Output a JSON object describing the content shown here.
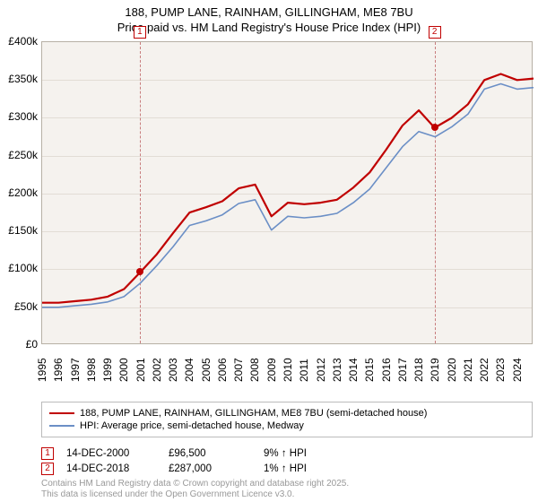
{
  "title": {
    "line1": "188, PUMP LANE, RAINHAM, GILLINGHAM, ME8 7BU",
    "line2": "Price paid vs. HM Land Registry's House Price Index (HPI)"
  },
  "chart": {
    "type": "line",
    "background_color": "#f5f2ee",
    "border_color": "#b7b0a5",
    "grid_color": "#e2ddd5",
    "text_color": "#000000",
    "tick_fontsize": 12,
    "y": {
      "min": 0,
      "max": 400000,
      "step": 50000,
      "labels": [
        "£0",
        "£50k",
        "£100k",
        "£150k",
        "£200k",
        "£250k",
        "£300k",
        "£350k",
        "£400k"
      ]
    },
    "x": {
      "min": 1995,
      "max": 2025,
      "labels": [
        "1995",
        "1996",
        "1997",
        "1998",
        "1999",
        "2000",
        "2001",
        "2002",
        "2003",
        "2004",
        "2005",
        "2006",
        "2007",
        "2008",
        "2009",
        "2010",
        "2011",
        "2012",
        "2013",
        "2014",
        "2015",
        "2016",
        "2017",
        "2018",
        "2019",
        "2020",
        "2021",
        "2022",
        "2023",
        "2024"
      ]
    },
    "series": [
      {
        "name": "188, PUMP LANE, RAINHAM, GILLINGHAM, ME8 7BU (semi-detached house)",
        "color": "#c00000",
        "line_width": 2.2,
        "values": [
          [
            1995,
            56000
          ],
          [
            1996,
            56000
          ],
          [
            1997,
            58000
          ],
          [
            1998,
            60000
          ],
          [
            1999,
            64000
          ],
          [
            2000,
            74000
          ],
          [
            2001,
            96500
          ],
          [
            2002,
            120000
          ],
          [
            2003,
            148000
          ],
          [
            2004,
            175000
          ],
          [
            2005,
            182000
          ],
          [
            2006,
            190000
          ],
          [
            2007,
            207000
          ],
          [
            2008,
            212000
          ],
          [
            2009,
            170000
          ],
          [
            2010,
            188000
          ],
          [
            2011,
            186000
          ],
          [
            2012,
            188000
          ],
          [
            2013,
            192000
          ],
          [
            2014,
            208000
          ],
          [
            2015,
            228000
          ],
          [
            2016,
            258000
          ],
          [
            2017,
            290000
          ],
          [
            2018,
            310000
          ],
          [
            2018.96,
            287000
          ],
          [
            2020,
            300000
          ],
          [
            2021,
            318000
          ],
          [
            2022,
            350000
          ],
          [
            2023,
            358000
          ],
          [
            2024,
            350000
          ],
          [
            2025,
            352000
          ]
        ]
      },
      {
        "name": "HPI: Average price, semi-detached house, Medway",
        "color": "#6b8fc6",
        "line_width": 1.6,
        "values": [
          [
            1995,
            50000
          ],
          [
            1996,
            50000
          ],
          [
            1997,
            52000
          ],
          [
            1998,
            54000
          ],
          [
            1999,
            57000
          ],
          [
            2000,
            64000
          ],
          [
            2001,
            82000
          ],
          [
            2002,
            105000
          ],
          [
            2003,
            130000
          ],
          [
            2004,
            158000
          ],
          [
            2005,
            164000
          ],
          [
            2006,
            172000
          ],
          [
            2007,
            187000
          ],
          [
            2008,
            192000
          ],
          [
            2009,
            152000
          ],
          [
            2010,
            170000
          ],
          [
            2011,
            168000
          ],
          [
            2012,
            170000
          ],
          [
            2013,
            174000
          ],
          [
            2014,
            188000
          ],
          [
            2015,
            206000
          ],
          [
            2016,
            234000
          ],
          [
            2017,
            262000
          ],
          [
            2018,
            282000
          ],
          [
            2019,
            275000
          ],
          [
            2020,
            288000
          ],
          [
            2021,
            305000
          ],
          [
            2022,
            338000
          ],
          [
            2023,
            345000
          ],
          [
            2024,
            338000
          ],
          [
            2025,
            340000
          ]
        ]
      }
    ],
    "markers": [
      {
        "id": "1",
        "x": 2000.96,
        "value": 96500,
        "color": "#c00000"
      },
      {
        "id": "2",
        "x": 2018.96,
        "value": 287000,
        "color": "#c00000"
      }
    ]
  },
  "legend": {
    "border_color": "#bbbbbb",
    "items": [
      {
        "label": "188, PUMP LANE, RAINHAM, GILLINGHAM, ME8 7BU (semi-detached house)",
        "color": "#c00000"
      },
      {
        "label": "HPI: Average price, semi-detached house, Medway",
        "color": "#6b8fc6"
      }
    ]
  },
  "footnotes": [
    {
      "marker": "1",
      "date": "14-DEC-2000",
      "price": "£96,500",
      "hpi": "9% ↑ HPI"
    },
    {
      "marker": "2",
      "date": "14-DEC-2018",
      "price": "£287,000",
      "hpi": "1% ↑ HPI"
    }
  ],
  "attribution": {
    "line1": "Contains HM Land Registry data © Crown copyright and database right 2025.",
    "line2": "This data is licensed under the Open Government Licence v3.0."
  }
}
